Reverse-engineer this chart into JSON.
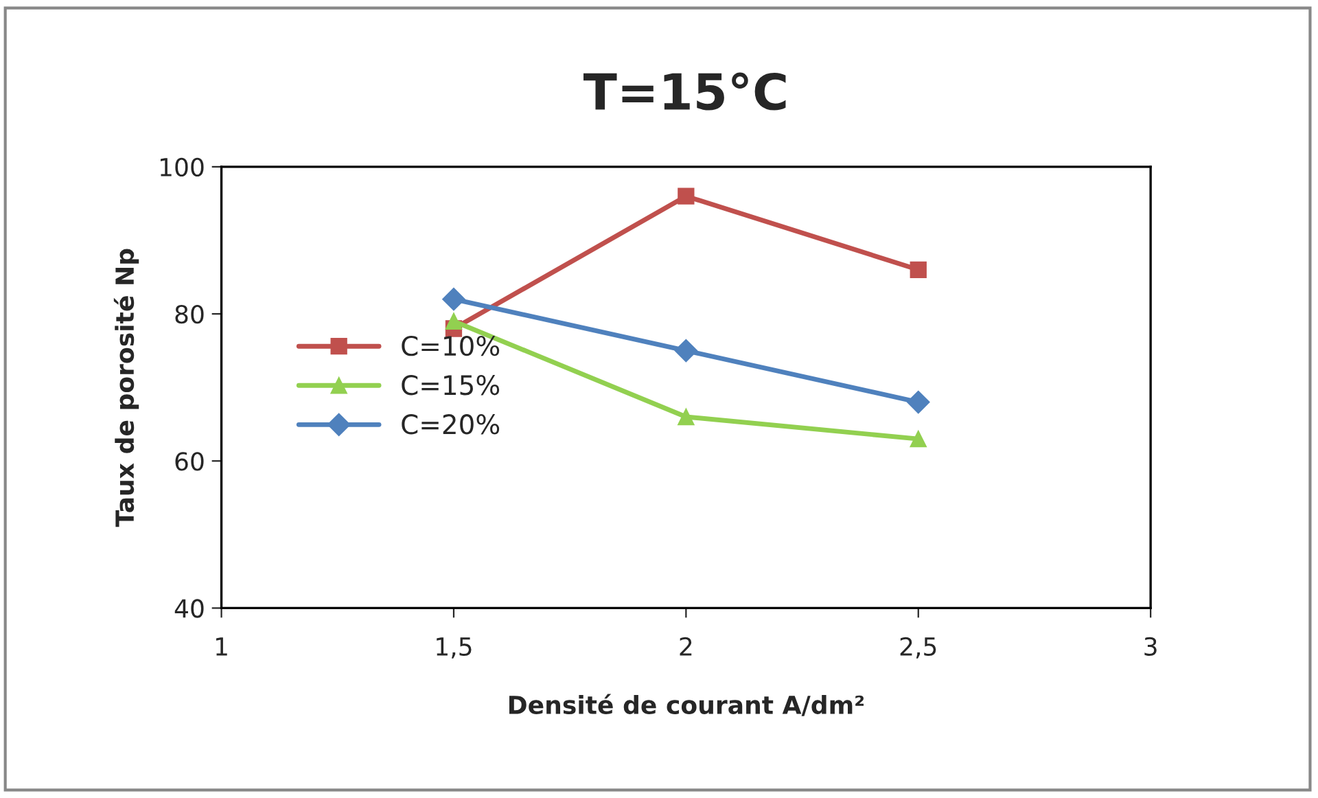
{
  "chart_data": {
    "type": "line",
    "title": "T=15°C",
    "xlabel": "Densité de courant A/dm²",
    "ylabel": "Taux de porosité Np",
    "x": [
      1.5,
      2,
      2.5
    ],
    "series": [
      {
        "name": "C=10%",
        "color": "#c0504d",
        "marker": "square",
        "values": [
          78,
          96,
          86
        ]
      },
      {
        "name": "C=15%",
        "color": "#92d050",
        "marker": "triangle",
        "values": [
          79,
          66,
          63
        ]
      },
      {
        "name": "C=20%",
        "color": "#4f81bd",
        "marker": "diamond",
        "values": [
          82,
          75,
          68
        ]
      }
    ],
    "xlim": [
      1,
      3
    ],
    "xticks": [
      1,
      {
        "value": 1.5,
        "label": "1,5"
      },
      2,
      {
        "value": 2.5,
        "label": "2,5"
      },
      3
    ],
    "ylim": [
      40,
      100
    ],
    "yticks": [
      40,
      60,
      80,
      100
    ],
    "grid": false,
    "legend": "center left"
  }
}
